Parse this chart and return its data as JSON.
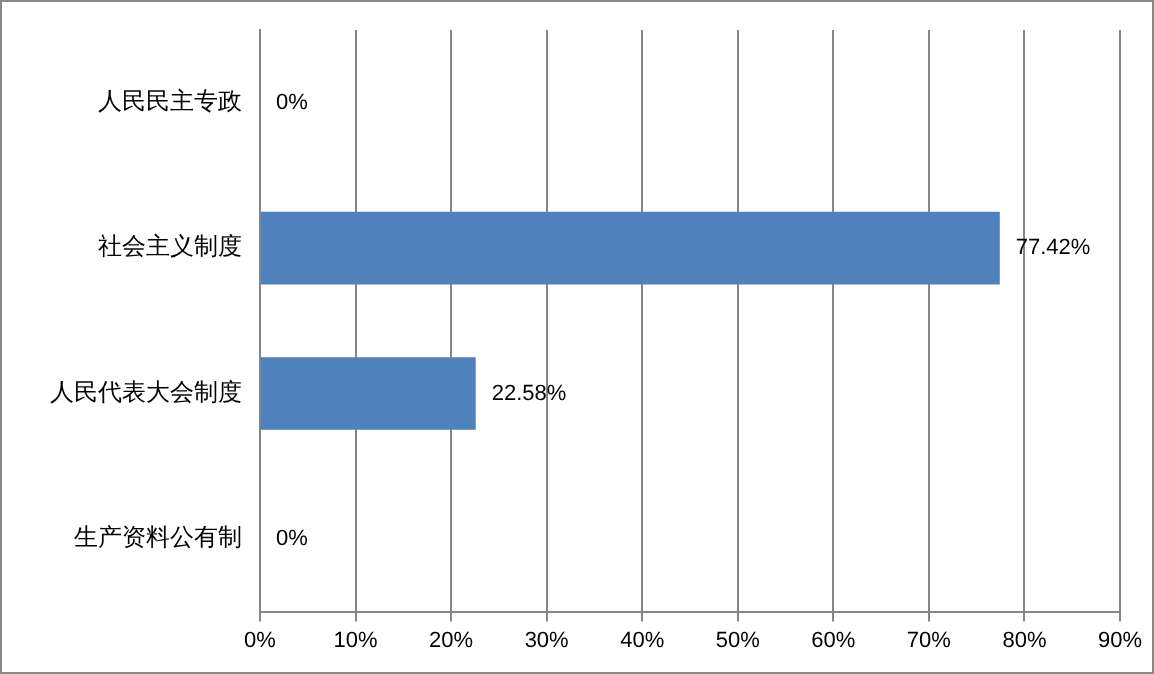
{
  "chart_data": {
    "type": "bar",
    "orientation": "horizontal",
    "categories": [
      "人民民主专政",
      "社会主义制度",
      "人民代表大会制度",
      "生产资料公有制"
    ],
    "values": [
      0,
      77.42,
      22.58,
      0
    ],
    "color": "#4f81bd",
    "value_labels": [
      "0%",
      "77.42%",
      "22.58%",
      "0%"
    ],
    "xlim": [
      0,
      90
    ],
    "xticks": [
      {
        "value": 0,
        "label": "0%"
      },
      {
        "value": 10,
        "label": "10%"
      },
      {
        "value": 20,
        "label": "20%"
      },
      {
        "value": 30,
        "label": "30%"
      },
      {
        "value": 40,
        "label": "40%"
      },
      {
        "value": 50,
        "label": "50%"
      },
      {
        "value": 60,
        "label": "60%"
      },
      {
        "value": 70,
        "label": "70%"
      },
      {
        "value": 80,
        "label": "80%"
      },
      {
        "value": 90,
        "label": "90%"
      }
    ],
    "grid": "x",
    "legend": false
  }
}
